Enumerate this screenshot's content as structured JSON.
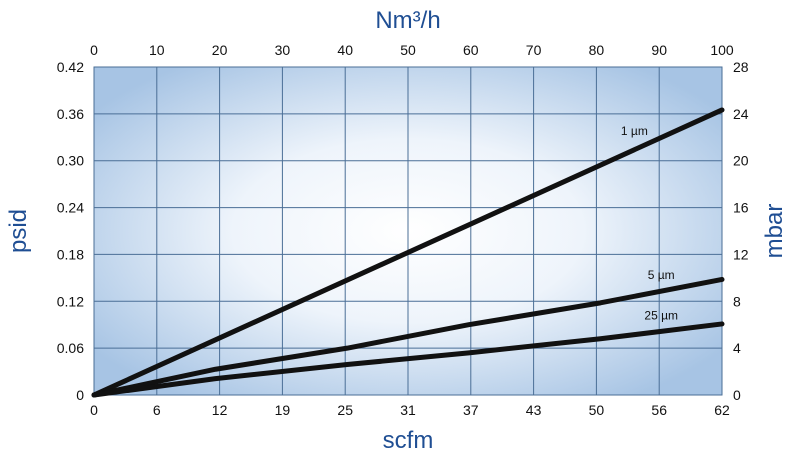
{
  "chart_data": {
    "type": "line",
    "title": "",
    "grid": true,
    "legend": "none",
    "axes": {
      "x_bottom": {
        "label": "scfm",
        "range": [
          0,
          62
        ],
        "ticks": [
          "0",
          "6",
          "12",
          "19",
          "25",
          "31",
          "37",
          "43",
          "50",
          "56",
          "62"
        ]
      },
      "x_top": {
        "label": "Nm³/h",
        "range": [
          0,
          100
        ],
        "ticks": [
          "0",
          "10",
          "20",
          "30",
          "40",
          "50",
          "60",
          "70",
          "80",
          "90",
          "100"
        ]
      },
      "y_left": {
        "label": "psid",
        "range": [
          0,
          0.42
        ],
        "ticks": [
          "0",
          "0.06",
          "0.12",
          "0.18",
          "0.24",
          "0.30",
          "0.36",
          "0.42"
        ]
      },
      "y_right": {
        "label": "mbar",
        "range": [
          0,
          28
        ],
        "ticks": [
          "0",
          "4",
          "8",
          "12",
          "16",
          "20",
          "24",
          "28"
        ]
      }
    },
    "series": [
      {
        "name": "1 µm",
        "x": [
          0,
          62
        ],
        "y": [
          0,
          0.365
        ]
      },
      {
        "name": "5 µm",
        "x": [
          0,
          12,
          25,
          37,
          50,
          62
        ],
        "y": [
          0,
          0.033,
          0.06,
          0.09,
          0.118,
          0.148
        ]
      },
      {
        "name": "25 µm",
        "x": [
          0,
          12,
          25,
          37,
          50,
          62
        ],
        "y": [
          0,
          0.021,
          0.039,
          0.054,
          0.072,
          0.091
        ]
      }
    ],
    "colors": {
      "background_center": "#ffffff",
      "background_edge": "#a7c4e4",
      "grid": "#4a6e96",
      "axis_title": "#1f4e93",
      "line": "#111111"
    }
  }
}
